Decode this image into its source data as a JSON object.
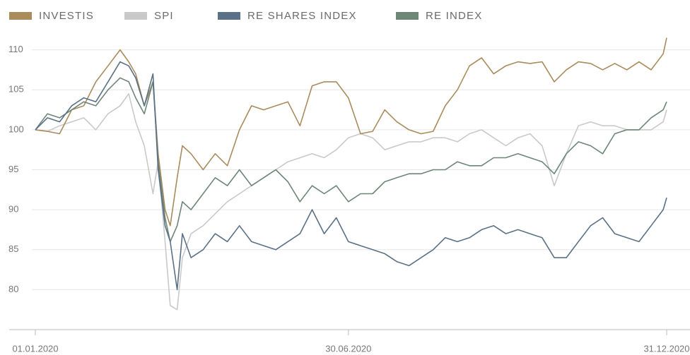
{
  "chart_data": {
    "type": "line",
    "x": [
      "01.01.2020",
      "08.01.2020",
      "15.01.2020",
      "22.01.2020",
      "29.01.2020",
      "05.02.2020",
      "12.02.2020",
      "19.02.2020",
      "24.02.2020",
      "28.02.2020",
      "04.03.2020",
      "09.03.2020",
      "12.03.2020",
      "16.03.2020",
      "19.03.2020",
      "23.03.2020",
      "26.03.2020",
      "31.03.2020",
      "07.04.2020",
      "14.04.2020",
      "21.04.2020",
      "28.04.2020",
      "05.05.2020",
      "12.05.2020",
      "19.05.2020",
      "26.05.2020",
      "02.06.2020",
      "09.06.2020",
      "16.06.2020",
      "23.06.2020",
      "30.06.2020",
      "07.07.2020",
      "14.07.2020",
      "21.07.2020",
      "28.07.2020",
      "04.08.2020",
      "11.08.2020",
      "18.08.2020",
      "25.08.2020",
      "01.09.2020",
      "08.09.2020",
      "15.09.2020",
      "22.09.2020",
      "29.09.2020",
      "06.10.2020",
      "13.10.2020",
      "20.10.2020",
      "27.10.2020",
      "03.11.2020",
      "10.11.2020",
      "17.11.2020",
      "24.11.2020",
      "01.12.2020",
      "08.12.2020",
      "15.12.2020",
      "22.12.2020",
      "29.12.2020",
      "31.12.2020"
    ],
    "series": [
      {
        "name": "INVESTIS",
        "color": "#a98b5c",
        "values": [
          100,
          99.8,
          99.5,
          102.5,
          103,
          106,
          108,
          110,
          108.5,
          107,
          103,
          106,
          97,
          90,
          88,
          94,
          98,
          97,
          95,
          97,
          95.5,
          100,
          103,
          102.5,
          103,
          103.5,
          100.5,
          105.5,
          106,
          106,
          104,
          99.5,
          99.8,
          102.5,
          101,
          100,
          99.5,
          99.8,
          103,
          105,
          108,
          109,
          107,
          108,
          108.5,
          108.3,
          108.5,
          106,
          107.5,
          108.5,
          108.3,
          107.5,
          108.3,
          107.5,
          108.5,
          107.5,
          109.5,
          111.5
        ]
      },
      {
        "name": "SPI",
        "color": "#c9c9c9",
        "values": [
          100,
          99.8,
          100.5,
          101,
          101.5,
          100,
          102,
          103,
          104.5,
          101,
          98,
          92,
          96,
          86,
          78,
          77.5,
          84,
          87,
          88,
          89.5,
          91,
          92,
          93,
          94,
          95,
          96,
          96.5,
          97,
          96.5,
          97.5,
          99,
          99.5,
          99,
          97.5,
          98,
          98.5,
          98.5,
          99,
          99,
          98.5,
          99.5,
          100,
          99,
          98,
          99,
          99.5,
          98,
          93,
          97,
          100.5,
          101,
          100.5,
          100.5,
          100,
          100,
          100,
          101,
          102.5
        ]
      },
      {
        "name": "RE SHARES INDEX",
        "color": "#5b7187",
        "values": [
          100,
          101.5,
          101,
          103,
          104,
          103.5,
          106,
          108.5,
          108,
          106.5,
          103,
          107,
          95,
          88,
          86,
          80,
          87,
          84,
          85,
          87,
          86,
          88,
          86,
          85.5,
          85,
          86,
          87,
          90,
          87,
          89,
          86,
          85.5,
          85,
          84.5,
          83.5,
          83,
          84,
          85,
          86.5,
          86,
          86.5,
          87.5,
          88,
          87,
          87.5,
          87,
          86.5,
          84,
          84,
          86,
          88,
          89,
          87,
          86.5,
          86,
          88,
          90,
          91.5
        ]
      },
      {
        "name": "RE INDEX",
        "color": "#6d8677",
        "values": [
          100,
          102,
          101.5,
          102.5,
          103.5,
          103,
          105,
          106.5,
          106,
          104,
          102,
          106,
          96,
          89,
          86,
          88,
          91,
          90,
          92,
          94,
          93,
          95,
          93,
          94,
          95,
          93.5,
          91,
          93,
          92,
          93,
          91,
          92,
          92,
          93.5,
          94,
          94.5,
          94.5,
          95,
          95,
          96,
          95.5,
          95.5,
          96.5,
          96.5,
          97,
          96.5,
          96,
          94.5,
          97,
          98.5,
          98,
          97,
          99.5,
          100,
          100,
          101.5,
          102.5,
          103.5
        ]
      }
    ],
    "xlim": [
      "01.01.2020",
      "31.12.2020"
    ],
    "xticks": [
      "01.01.2020",
      "30.06.2020",
      "31.12.2020"
    ],
    "ylim": [
      75,
      115
    ],
    "yticks": [
      80,
      85,
      90,
      95,
      100,
      105,
      110
    ],
    "grid": true
  }
}
